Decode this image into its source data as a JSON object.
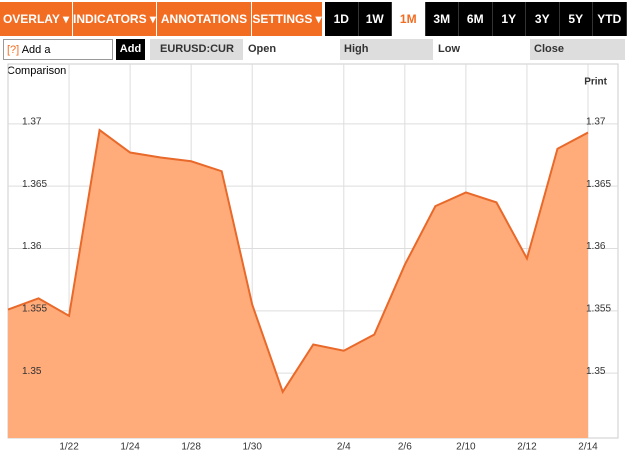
{
  "toolbar": {
    "menus": [
      "OVERLAY ▾",
      "INDICATORS ▾",
      "ANNOTATIONS ▾",
      "SETTINGS ▾"
    ],
    "ranges": [
      {
        "label": "1D",
        "selected": false
      },
      {
        "label": "1W",
        "selected": false
      },
      {
        "label": "1M",
        "selected": true
      },
      {
        "label": "3M",
        "selected": false
      },
      {
        "label": "6M",
        "selected": false
      },
      {
        "label": "1Y",
        "selected": false
      },
      {
        "label": "3Y",
        "selected": false
      },
      {
        "label": "5Y",
        "selected": false
      },
      {
        "label": "YTD",
        "selected": false
      }
    ]
  },
  "comparison": {
    "help": "[?]",
    "placeholder": "Add a Comparison",
    "button": "Add",
    "symbol": "EURUSD:CUR"
  },
  "fields": [
    "Open",
    "High",
    "Low",
    "Close"
  ],
  "print": "Print",
  "chart_data": {
    "type": "area",
    "categories": [
      null,
      null,
      "1/22",
      null,
      "1/24",
      null,
      "1/28",
      null,
      "1/30",
      null,
      null,
      "2/4",
      null,
      "2/6",
      null,
      "2/10",
      null,
      "2/12",
      null,
      "2/14"
    ],
    "series": [
      {
        "name": "EURUSD:CUR",
        "color": "#e8692a",
        "fill": "#ffab7a",
        "values": [
          1.3551,
          1.356,
          1.3546,
          1.3695,
          1.3677,
          1.3673,
          1.367,
          1.3662,
          1.3555,
          1.3485,
          1.3523,
          1.3518,
          1.3531,
          1.3587,
          1.3634,
          1.3645,
          1.3637,
          1.3592,
          1.368,
          1.3693
        ]
      }
    ],
    "ylim": [
      1.3448,
      1.3748
    ],
    "yticks": [
      1.35,
      1.355,
      1.36,
      1.365,
      1.37
    ],
    "grid": true
  }
}
